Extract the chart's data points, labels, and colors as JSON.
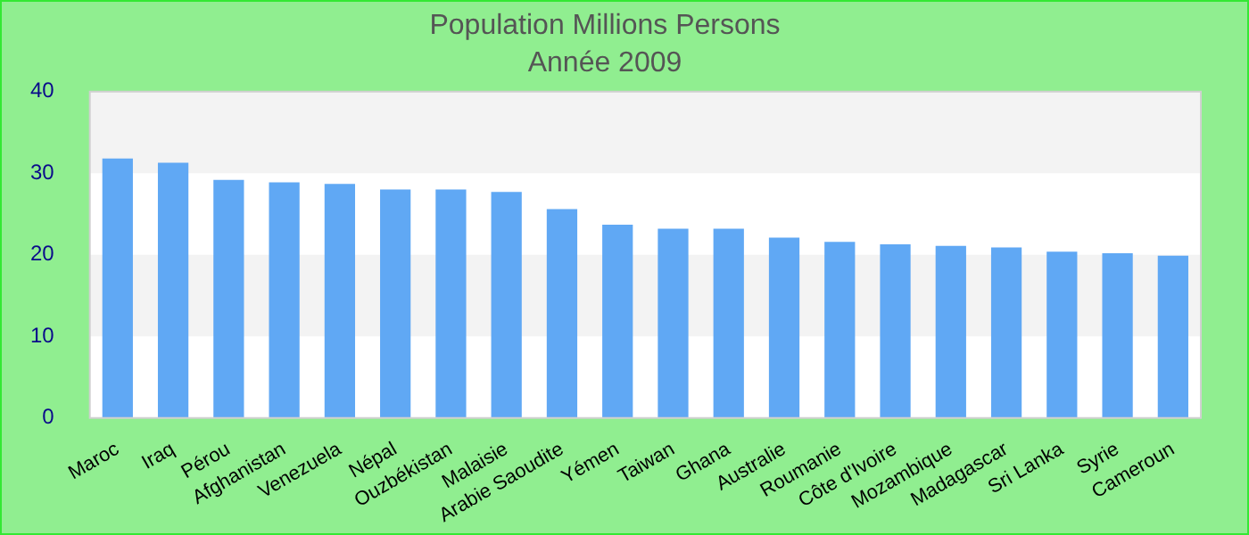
{
  "chart_data": {
    "type": "bar",
    "title": "Population Millions Persons",
    "subtitle": "Année 2009",
    "categories": [
      "Maroc",
      "Iraq",
      "Pérou",
      "Afghanistan",
      "Venezuela",
      "Népal",
      "Ouzbékistan",
      "Malaisie",
      "Arabie Saoudite",
      "Yémen",
      "Taiwan",
      "Ghana",
      "Australie",
      "Roumanie",
      "Côte d'Ivoire",
      "Mozambique",
      "Madagascar",
      "Sri Lanka",
      "Syrie",
      "Cameroun"
    ],
    "values": [
      31.8,
      31.3,
      29.2,
      28.9,
      28.7,
      28.0,
      28.0,
      27.7,
      25.6,
      23.7,
      23.2,
      23.2,
      22.1,
      21.6,
      21.3,
      21.1,
      20.9,
      20.4,
      20.2,
      19.9
    ],
    "color": "#60a8f4",
    "ylim": [
      0,
      40
    ],
    "yticks": [
      0,
      10,
      20,
      30,
      40
    ],
    "bands": [
      {
        "axis": "y",
        "from": 10,
        "to": 20,
        "color": "#f3f3f3"
      },
      {
        "axis": "y",
        "from": 30,
        "to": 40,
        "color": "#f3f3f3"
      }
    ]
  }
}
